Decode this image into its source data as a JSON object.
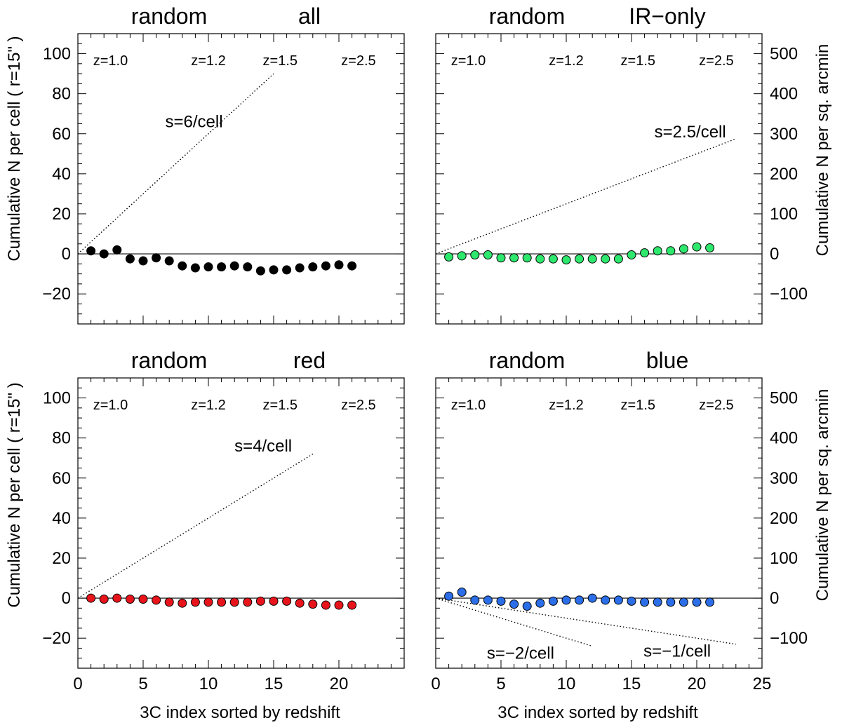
{
  "figure": {
    "y_left_label": "Cumulative N per cell ( r=15\" )",
    "y_right_label": "Cumulative  N per sq. arcmin",
    "x_label": "3C index sorted by redshift"
  },
  "chart_data": [
    {
      "type": "scatter",
      "panel": "top-left",
      "title_left": "random",
      "title_right": "all",
      "marker_color": "#000000",
      "xlim": [
        0,
        25
      ],
      "ylim": [
        -35,
        110
      ],
      "x_ticks": [],
      "y_ticks": [
        "−20",
        "0",
        "20",
        "40",
        "60",
        "80",
        "100"
      ],
      "right_ticks": [],
      "xlabel": "",
      "ylabel": "Cumulative N per cell ( r=15\" )",
      "redshift_labels": [
        {
          "x": 2.5,
          "text": "z=1.0"
        },
        {
          "x": 10.0,
          "text": "z=1.2"
        },
        {
          "x": 15.5,
          "text": "z=1.5"
        },
        {
          "x": 21.5,
          "text": "z=2.5"
        }
      ],
      "reference_lines": [
        {
          "x": [
            0,
            15
          ],
          "y": [
            0,
            90
          ],
          "label": "s=6/cell",
          "label_x": 8.9,
          "label_y": 66
        }
      ],
      "series": [
        {
          "x": [
            1,
            2,
            3,
            4,
            5,
            6,
            7,
            8,
            9,
            10,
            11,
            12,
            13,
            14,
            15,
            16,
            17,
            18,
            19,
            20,
            21
          ],
          "y": [
            1.5,
            0.0,
            2.0,
            -2.5,
            -3.5,
            -2.0,
            -3.5,
            -6.0,
            -7.0,
            -6.5,
            -6.5,
            -6.0,
            -6.5,
            -8.5,
            -8.0,
            -8.0,
            -7.0,
            -6.5,
            -6.0,
            -5.5,
            -6.0
          ]
        }
      ]
    },
    {
      "type": "scatter",
      "panel": "top-right",
      "title_left": "random",
      "title_right": "IR−only",
      "marker_color": "#2ee86e",
      "xlim": [
        0,
        25
      ],
      "ylim": [
        -35,
        110
      ],
      "x_ticks": [],
      "y_ticks": [],
      "right_ticks": [
        "−100",
        "0",
        "100",
        "200",
        "300",
        "400",
        "500"
      ],
      "xlabel": "",
      "ylabel": "Cumulative  N per sq. arcmin",
      "redshift_labels": [
        {
          "x": 2.5,
          "text": "z=1.0"
        },
        {
          "x": 10.0,
          "text": "z=1.2"
        },
        {
          "x": 15.5,
          "text": "z=1.5"
        },
        {
          "x": 21.5,
          "text": "z=2.5"
        }
      ],
      "reference_lines": [
        {
          "x": [
            0,
            23
          ],
          "y": [
            0,
            57.5
          ],
          "label": "s=2.5/cell",
          "label_x": 19.5,
          "label_y": 61
        }
      ],
      "series": [
        {
          "x": [
            1,
            2,
            3,
            4,
            5,
            6,
            7,
            8,
            9,
            10,
            11,
            12,
            13,
            14,
            15,
            16,
            17,
            18,
            19,
            20,
            21
          ],
          "y": [
            -1.5,
            -1.0,
            -0.5,
            -0.5,
            -2.0,
            -2.0,
            -2.0,
            -2.5,
            -2.5,
            -3.0,
            -2.5,
            -2.5,
            -2.5,
            -2.5,
            -0.5,
            0.5,
            1.5,
            1.5,
            2.5,
            3.5,
            3.0
          ]
        }
      ]
    },
    {
      "type": "scatter",
      "panel": "bottom-left",
      "title_left": "random",
      "title_right": "red",
      "marker_color": "#e8141c",
      "xlim": [
        0,
        25
      ],
      "ylim": [
        -35,
        110
      ],
      "x_ticks": [
        "0",
        "5",
        "10",
        "15",
        "20"
      ],
      "y_ticks": [
        "−20",
        "0",
        "20",
        "40",
        "60",
        "80",
        "100"
      ],
      "right_ticks": [],
      "xlabel": "3C index sorted by redshift",
      "ylabel": "Cumulative N per cell ( r=15\" )",
      "redshift_labels": [
        {
          "x": 2.5,
          "text": "z=1.0"
        },
        {
          "x": 10.0,
          "text": "z=1.2"
        },
        {
          "x": 15.5,
          "text": "z=1.5"
        },
        {
          "x": 21.5,
          "text": "z=2.5"
        }
      ],
      "reference_lines": [
        {
          "x": [
            0,
            18
          ],
          "y": [
            0,
            72
          ],
          "label": "s=4/cell",
          "label_x": 14.2,
          "label_y": 76
        }
      ],
      "series": [
        {
          "x": [
            1,
            2,
            3,
            4,
            5,
            6,
            7,
            8,
            9,
            10,
            11,
            12,
            13,
            14,
            15,
            16,
            17,
            18,
            19,
            20,
            21
          ],
          "y": [
            0.0,
            -0.5,
            0.0,
            -0.5,
            -0.5,
            -1.0,
            -2.0,
            -2.5,
            -2.0,
            -2.0,
            -2.0,
            -2.0,
            -2.0,
            -1.5,
            -1.5,
            -1.5,
            -2.5,
            -3.0,
            -3.5,
            -3.5,
            -3.5
          ]
        }
      ]
    },
    {
      "type": "scatter",
      "panel": "bottom-right",
      "title_left": "random",
      "title_right": "blue",
      "marker_color": "#2b6ee8",
      "xlim": [
        0,
        25
      ],
      "ylim": [
        -35,
        110
      ],
      "x_ticks": [
        "0",
        "5",
        "10",
        "15",
        "20",
        "25"
      ],
      "y_ticks": [],
      "right_ticks": [
        "−100",
        "0",
        "100",
        "200",
        "300",
        "400",
        "500"
      ],
      "xlabel": "3C index sorted by redshift",
      "ylabel": "Cumulative  N per sq. arcmin",
      "redshift_labels": [
        {
          "x": 2.5,
          "text": "z=1.0"
        },
        {
          "x": 10.0,
          "text": "z=1.2"
        },
        {
          "x": 15.5,
          "text": "z=1.5"
        },
        {
          "x": 21.5,
          "text": "z=2.5"
        }
      ],
      "reference_lines": [
        {
          "x": [
            0,
            12
          ],
          "y": [
            0,
            -24
          ],
          "label": "s=−2/cell",
          "label_x": 6.5,
          "label_y": -27.5
        },
        {
          "x": [
            0,
            23
          ],
          "y": [
            0,
            -23
          ],
          "label": "s=−1/cell",
          "label_x": 18.5,
          "label_y": -26.5
        }
      ],
      "series": [
        {
          "x": [
            1,
            2,
            3,
            4,
            5,
            6,
            7,
            8,
            9,
            10,
            11,
            12,
            13,
            14,
            15,
            16,
            17,
            18,
            19,
            20,
            21
          ],
          "y": [
            1.0,
            3.0,
            -1.0,
            -1.0,
            -1.5,
            -3.0,
            -4.0,
            -2.5,
            -1.5,
            -1.0,
            -1.0,
            0.0,
            -1.0,
            -1.0,
            -1.5,
            -2.0,
            -2.0,
            -2.0,
            -2.0,
            -2.0,
            -2.0
          ]
        }
      ]
    }
  ]
}
